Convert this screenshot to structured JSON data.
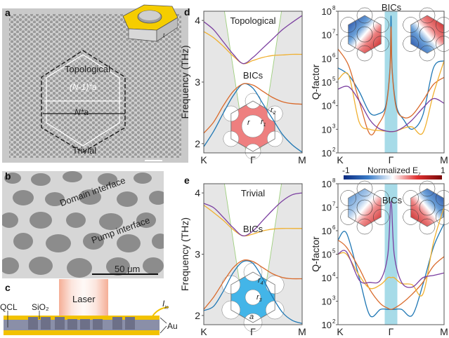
{
  "panels": {
    "a": {
      "label": "a",
      "region_topological": "Topological",
      "region_trivial": "Trivial",
      "dim_inner": "(N-1)*a",
      "dim_outer": "N*a",
      "inset_thickness_label": "t"
    },
    "b": {
      "label": "b",
      "domain_interface": "Domain interface",
      "pump_interface": "Pump interface",
      "scale_bar": "50 μm"
    },
    "c": {
      "label": "c",
      "laser": "Laser",
      "qcl": "QCL",
      "sio2": "SiO₂",
      "current": "I",
      "current_sub": "in",
      "au": "Au",
      "colors": {
        "gold": "#f2c200",
        "qcl_layer": "#8a8fa8",
        "laser": "#f0a080"
      }
    },
    "d": {
      "label": "d",
      "title": "Topological",
      "bics": "BICs",
      "r": "r",
      "r1": "r",
      "r1_sub": "1",
      "r2": "r",
      "r2_sub": "2",
      "fill": "#ee7f7f"
    },
    "e": {
      "label": "e",
      "title": "Trivial",
      "bics": "BICs",
      "r3": "r",
      "r3_sub": "3",
      "r4": "r",
      "r4_sub": "4",
      "a": "a",
      "fill": "#43b5e8",
      "colorbar_label": "Normalized E",
      "colorbar_sub": "z",
      "colorbar_min": "-1",
      "colorbar_max": "1"
    },
    "q_top": {
      "bics": "BICs"
    },
    "q_bottom": {
      "bics": "BICs"
    }
  },
  "chart_data": [
    {
      "id": "d-band",
      "type": "line",
      "title": "Topological",
      "xlabel": "",
      "ylabel": "Frequency (THz)",
      "x_ticks": [
        "K",
        "Γ",
        "M"
      ],
      "x": [
        0,
        0.1,
        0.2,
        0.3,
        0.4,
        0.5,
        0.6,
        0.7,
        0.8,
        0.9,
        1.0
      ],
      "ylim": [
        1.85,
        4.15
      ],
      "y_ticks": [
        2,
        3,
        4
      ],
      "light_cone_shaded": true,
      "series": [
        {
          "name": "band1",
          "color": "#1f77b4",
          "values": [
            1.95,
            2.2,
            2.5,
            2.78,
            2.97,
            2.9,
            2.65,
            2.4,
            2.15,
            1.98,
            1.86
          ]
        },
        {
          "name": "band2",
          "color": "#d96a2b",
          "values": [
            2.17,
            2.35,
            2.62,
            2.85,
            2.97,
            2.95,
            2.85,
            2.75,
            2.68,
            2.65,
            2.64
          ]
        },
        {
          "name": "band3",
          "color": "#f0b030",
          "values": [
            3.82,
            3.72,
            3.58,
            3.42,
            3.3,
            3.35,
            3.4,
            3.43,
            3.44,
            3.45,
            3.45
          ]
        },
        {
          "name": "band4",
          "color": "#7b3fa0",
          "values": [
            3.98,
            3.85,
            3.65,
            3.45,
            3.3,
            3.4,
            3.55,
            3.7,
            3.85,
            3.97,
            4.08
          ]
        }
      ],
      "annotations": [
        "BICs"
      ]
    },
    {
      "id": "d-q",
      "type": "line",
      "xlabel": "",
      "ylabel": "Q-factor",
      "y_scale": "log",
      "x_ticks": [
        "K",
        "Γ",
        "M"
      ],
      "y_ticks": [
        "10²",
        "10³",
        "10⁴",
        "10⁵",
        "10⁶",
        "10⁷",
        "10⁸"
      ],
      "ylim_log10": [
        2,
        8
      ],
      "highlight_band": "Γ",
      "x": [
        0,
        0.1,
        0.2,
        0.3,
        0.38,
        0.45,
        0.49,
        0.5,
        0.51,
        0.55,
        0.62,
        0.7,
        0.8,
        0.9,
        1.0
      ],
      "series": [
        {
          "name": "band1",
          "color": "#1f77b4",
          "log10_values": [
            5.6,
            5.3,
            4.6,
            3.7,
            3.65,
            4.0,
            5.6,
            7.8,
            5.6,
            4.0,
            3.4,
            3.0,
            3.6,
            5.6,
            5.9
          ]
        },
        {
          "name": "band2",
          "color": "#d96a2b",
          "log10_values": [
            6.4,
            5.7,
            4.2,
            2.8,
            3.2,
            3.9,
            5.5,
            7.35,
            5.5,
            3.9,
            3.5,
            3.6,
            4.2,
            4.9,
            5.2
          ]
        },
        {
          "name": "band3",
          "color": "#f0b030",
          "log10_values": [
            5.1,
            5.3,
            3.3,
            3.0,
            2.95,
            2.92,
            2.9,
            2.9,
            2.9,
            2.92,
            3.05,
            3.1,
            2.85,
            4.5,
            5.9
          ]
        },
        {
          "name": "band4",
          "color": "#7b3fa0",
          "log10_values": [
            4.7,
            4.8,
            4.2,
            3.4,
            3.05,
            2.93,
            2.9,
            2.9,
            2.9,
            2.93,
            3.1,
            3.4,
            3.9,
            4.3,
            4.1
          ]
        }
      ],
      "annotations": [
        "BICs"
      ]
    },
    {
      "id": "e-band",
      "type": "line",
      "title": "Trivial",
      "xlabel": "",
      "ylabel": "Frequency (THz)",
      "x_ticks": [
        "K",
        "Γ",
        "M"
      ],
      "x": [
        0,
        0.1,
        0.2,
        0.3,
        0.4,
        0.5,
        0.6,
        0.7,
        0.8,
        0.9,
        1.0
      ],
      "ylim": [
        1.85,
        4.15
      ],
      "y_ticks": [
        2,
        3,
        4
      ],
      "light_cone_shaded": true,
      "series": [
        {
          "name": "band1",
          "color": "#1f77b4",
          "values": [
            2.08,
            2.15,
            2.4,
            2.7,
            2.88,
            2.85,
            2.6,
            2.3,
            2.05,
            1.92,
            1.87
          ]
        },
        {
          "name": "band2",
          "color": "#d96a2b",
          "values": [
            2.1,
            2.3,
            2.55,
            2.78,
            2.9,
            2.88,
            2.78,
            2.68,
            2.62,
            2.6,
            2.6
          ]
        },
        {
          "name": "band3",
          "color": "#f0b030",
          "values": [
            3.8,
            3.68,
            3.55,
            3.4,
            3.3,
            3.33,
            3.38,
            3.41,
            3.42,
            3.42,
            3.42
          ]
        },
        {
          "name": "band4",
          "color": "#7b3fa0",
          "values": [
            3.83,
            3.76,
            3.6,
            3.43,
            3.3,
            3.38,
            3.55,
            3.72,
            3.87,
            3.97,
            4.0
          ]
        }
      ],
      "annotations": [
        "BICs"
      ]
    },
    {
      "id": "e-q",
      "type": "line",
      "xlabel": "",
      "ylabel": "Q-factor",
      "y_scale": "log",
      "x_ticks": [
        "K",
        "Γ",
        "M"
      ],
      "y_ticks": [
        "10²",
        "10³",
        "10⁴",
        "10⁵",
        "10⁶",
        "10⁷",
        "10⁸"
      ],
      "ylim_log10": [
        2,
        8
      ],
      "highlight_band": "Γ",
      "x": [
        0,
        0.08,
        0.2,
        0.3,
        0.4,
        0.47,
        0.5,
        0.53,
        0.6,
        0.7,
        0.8,
        0.9,
        1.0
      ],
      "series": [
        {
          "name": "band1",
          "color": "#1f77b4",
          "log10_values": [
            5.6,
            5.9,
            4.0,
            2.4,
            2.65,
            2.65,
            2.65,
            2.65,
            2.65,
            2.4,
            3.7,
            5.3,
            6.3
          ]
        },
        {
          "name": "band2",
          "color": "#d96a2b",
          "log10_values": [
            5.6,
            5.3,
            4.4,
            3.5,
            2.9,
            2.7,
            2.65,
            2.7,
            2.9,
            3.3,
            3.8,
            4.5,
            4.9
          ]
        },
        {
          "name": "band3",
          "color": "#f0b030",
          "log10_values": [
            5.0,
            5.0,
            4.1,
            3.55,
            3.7,
            4.0,
            4.0,
            4.0,
            3.75,
            3.7,
            3.3,
            5.5,
            7.0
          ]
        },
        {
          "name": "band4",
          "color": "#7b3fa0",
          "log10_values": [
            5.0,
            5.1,
            3.9,
            3.8,
            3.9,
            5.0,
            7.25,
            5.0,
            3.8,
            3.6,
            4.0,
            4.1,
            4.2
          ]
        }
      ],
      "annotations": [
        "BICs"
      ]
    }
  ],
  "axis_text": {
    "freq_label": "Frequency (THz)",
    "q_label": "Q-factor",
    "xK": "K",
    "xG": "Γ",
    "xM": "M",
    "freq_ticks": [
      "2",
      "3",
      "4"
    ],
    "q_ticks": [
      "10",
      "10",
      "10",
      "10",
      "10",
      "10",
      "10"
    ],
    "q_exps": [
      "2",
      "3",
      "4",
      "5",
      "6",
      "7",
      "8"
    ]
  }
}
